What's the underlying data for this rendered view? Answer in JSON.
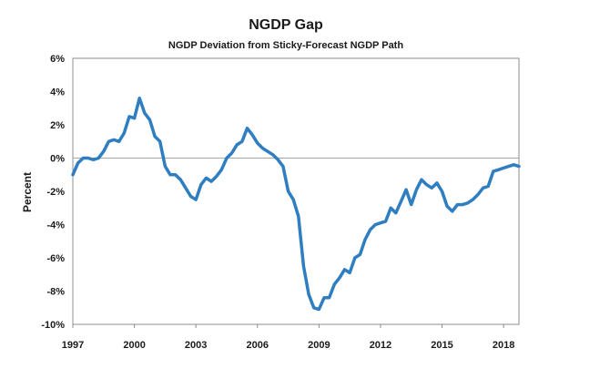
{
  "chart_data": {
    "type": "line",
    "title": "NGDP Gap",
    "subtitle": "NGDP Deviation from Sticky-Forecast NGDP Path",
    "xlabel": "",
    "ylabel": "Percent",
    "xlim": [
      1997,
      2018.75
    ],
    "ylim": [
      -10,
      6
    ],
    "x_ticks": [
      1997,
      2000,
      2003,
      2006,
      2009,
      2012,
      2015,
      2018
    ],
    "x_tick_labels": [
      "1997",
      "2000",
      "2003",
      "2006",
      "2009",
      "2012",
      "2015",
      "2018"
    ],
    "y_ticks": [
      6,
      4,
      2,
      0,
      -2,
      -4,
      -6,
      -8,
      -10
    ],
    "y_tick_labels": [
      "6%",
      "4%",
      "2%",
      "0%",
      "-2%",
      "-4%",
      "-6%",
      "-8%",
      "-10%"
    ],
    "grid": false,
    "zero_line": true,
    "legend": "none",
    "series": [
      {
        "color": "#2f7ec1",
        "x": [
          1997.0,
          1997.25,
          1997.5,
          1997.75,
          1998.0,
          1998.25,
          1998.5,
          1998.75,
          1999.0,
          1999.25,
          1999.5,
          1999.75,
          2000.0,
          2000.25,
          2000.5,
          2000.75,
          2001.0,
          2001.25,
          2001.5,
          2001.75,
          2002.0,
          2002.25,
          2002.5,
          2002.75,
          2003.0,
          2003.25,
          2003.5,
          2003.75,
          2004.0,
          2004.25,
          2004.5,
          2004.75,
          2005.0,
          2005.25,
          2005.5,
          2005.75,
          2006.0,
          2006.25,
          2006.5,
          2006.75,
          2007.0,
          2007.25,
          2007.5,
          2007.75,
          2008.0,
          2008.25,
          2008.5,
          2008.75,
          2009.0,
          2009.25,
          2009.5,
          2009.75,
          2010.0,
          2010.25,
          2010.5,
          2010.75,
          2011.0,
          2011.25,
          2011.5,
          2011.75,
          2012.0,
          2012.25,
          2012.5,
          2012.75,
          2013.0,
          2013.25,
          2013.5,
          2013.75,
          2014.0,
          2014.25,
          2014.5,
          2014.75,
          2015.0,
          2015.25,
          2015.5,
          2015.75,
          2016.0,
          2016.25,
          2016.5,
          2016.75,
          2017.0,
          2017.25,
          2017.5,
          2017.75,
          2018.0,
          2018.25,
          2018.5,
          2018.75
        ],
        "values": [
          -1.0,
          -0.3,
          0.0,
          0.0,
          -0.1,
          0.0,
          0.4,
          1.0,
          1.1,
          1.0,
          1.5,
          2.5,
          2.4,
          3.6,
          2.7,
          2.3,
          1.3,
          1.0,
          -0.5,
          -1.0,
          -1.0,
          -1.3,
          -1.8,
          -2.3,
          -2.5,
          -1.6,
          -1.2,
          -1.4,
          -1.1,
          -0.7,
          0.0,
          0.3,
          0.8,
          1.0,
          1.8,
          1.4,
          0.9,
          0.6,
          0.4,
          0.2,
          -0.1,
          -0.5,
          -2.0,
          -2.5,
          -3.5,
          -6.5,
          -8.2,
          -9.0,
          -9.1,
          -8.4,
          -8.4,
          -7.6,
          -7.2,
          -6.7,
          -6.9,
          -6.0,
          -5.8,
          -4.9,
          -4.3,
          -4.0,
          -3.9,
          -3.8,
          -3.0,
          -3.3,
          -2.6,
          -1.9,
          -2.8,
          -1.9,
          -1.3,
          -1.6,
          -1.8,
          -1.5,
          -2.0,
          -2.9,
          -3.2,
          -2.8,
          -2.8,
          -2.7,
          -2.5,
          -2.2,
          -1.8,
          -1.7,
          -0.8,
          -0.7,
          -0.6,
          -0.5,
          -0.4,
          -0.5
        ]
      }
    ]
  }
}
